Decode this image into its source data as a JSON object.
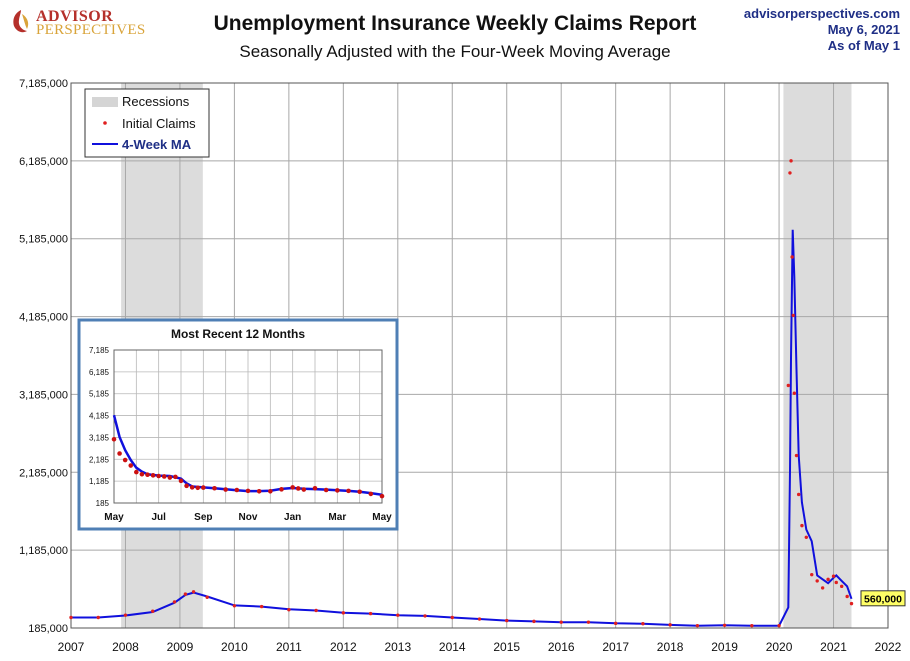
{
  "header": {
    "logo_line1": "ADVISOR",
    "logo_line2": "PERSPECTIVES",
    "title": "Unemployment Insurance Weekly Claims Report",
    "subtitle": "Seasonally Adjusted with the Four-Week Moving Average",
    "source_site": "advisorperspectives.com",
    "source_date": "May 6, 2021",
    "source_asof": "As of May 1"
  },
  "chart_data": [
    {
      "type": "line",
      "title": "",
      "xlabel": "",
      "ylabel": "",
      "xlim": [
        2007,
        2022
      ],
      "ylim": [
        185000,
        7185000
      ],
      "y_ticks": [
        185000,
        1185000,
        2185000,
        3185000,
        4185000,
        5185000,
        6185000,
        7185000
      ],
      "y_tick_labels": [
        "185,000",
        "1,185,000",
        "2,185,000",
        "3,185,000",
        "4,185,000",
        "5,185,000",
        "6,185,000",
        "7,185,000"
      ],
      "x_ticks": [
        2007,
        2008,
        2009,
        2010,
        2011,
        2012,
        2013,
        2014,
        2015,
        2016,
        2017,
        2018,
        2019,
        2020,
        2021,
        2022
      ],
      "x_tick_labels": [
        "2007",
        "2008",
        "2009",
        "2010",
        "2011",
        "2012",
        "2013",
        "2014",
        "2015",
        "2016",
        "2017",
        "2018",
        "2019",
        "2020",
        "2021",
        "2022"
      ],
      "grid": true,
      "legend_position": "top-left",
      "recessions": [
        [
          2007.92,
          2009.42
        ],
        [
          2020.08,
          2021.33
        ]
      ],
      "series": [
        {
          "name": "Initial Claims",
          "color": "#e02020",
          "marker": "dot",
          "x": [
            2007.0,
            2007.5,
            2008.0,
            2008.5,
            2008.9,
            2009.1,
            2009.25,
            2009.5,
            2010.0,
            2010.5,
            2011.0,
            2011.5,
            2012.0,
            2012.5,
            2013.0,
            2013.5,
            2014.0,
            2014.5,
            2015.0,
            2015.5,
            2016.0,
            2016.5,
            2017.0,
            2017.5,
            2018.0,
            2018.5,
            2019.0,
            2019.5,
            2020.0,
            2020.17,
            2020.2,
            2020.22,
            2020.24,
            2020.26,
            2020.28,
            2020.32,
            2020.36,
            2020.42,
            2020.5,
            2020.6,
            2020.7,
            2020.8,
            2020.9,
            2021.0,
            2021.05,
            2021.15,
            2021.25,
            2021.33
          ],
          "values": [
            320000,
            320000,
            350000,
            400000,
            520000,
            620000,
            650000,
            580000,
            470000,
            460000,
            420000,
            410000,
            380000,
            370000,
            350000,
            340000,
            320000,
            300000,
            280000,
            270000,
            260000,
            260000,
            245000,
            240000,
            225000,
            215000,
            220000,
            215000,
            215000,
            3300000,
            6030000,
            6185000,
            4950000,
            4200000,
            3200000,
            2400000,
            1900000,
            1500000,
            1350000,
            870000,
            790000,
            700000,
            810000,
            850000,
            770000,
            720000,
            590000,
            498000
          ]
        },
        {
          "name": "4-Week MA",
          "color": "#1010dd",
          "marker": "line",
          "x": [
            2007.0,
            2007.5,
            2008.0,
            2008.5,
            2008.9,
            2009.1,
            2009.25,
            2009.5,
            2010.0,
            2010.5,
            2011.0,
            2011.5,
            2012.0,
            2012.5,
            2013.0,
            2013.5,
            2014.0,
            2014.5,
            2015.0,
            2015.5,
            2016.0,
            2016.5,
            2017.0,
            2017.5,
            2018.0,
            2018.5,
            2019.0,
            2019.5,
            2020.0,
            2020.17,
            2020.2,
            2020.22,
            2020.25,
            2020.28,
            2020.32,
            2020.36,
            2020.42,
            2020.5,
            2020.6,
            2020.7,
            2020.8,
            2020.9,
            2021.0,
            2021.05,
            2021.15,
            2021.25,
            2021.33
          ],
          "values": [
            320000,
            320000,
            345000,
            390000,
            510000,
            610000,
            640000,
            590000,
            475000,
            460000,
            425000,
            410000,
            380000,
            370000,
            350000,
            340000,
            320000,
            300000,
            280000,
            270000,
            260000,
            260000,
            245000,
            240000,
            225000,
            215000,
            220000,
            215000,
            215000,
            450000,
            2200000,
            3650000,
            5300000,
            4700000,
            3500000,
            2400000,
            1800000,
            1450000,
            1300000,
            860000,
            810000,
            760000,
            830000,
            860000,
            790000,
            720000,
            560000
          ]
        }
      ],
      "legend_entries": [
        "Recessions",
        "Initial Claims",
        "4-Week MA"
      ],
      "last_value_label": "560,000"
    },
    {
      "type": "line",
      "title": "Most Recent 12 Months",
      "ylim": [
        185,
        7185
      ],
      "y_ticks": [
        185,
        1185,
        2185,
        3185,
        4185,
        5185,
        6185,
        7185
      ],
      "y_tick_labels": [
        "185",
        "1,185",
        "2,185",
        "3,185",
        "4,185",
        "5,185",
        "6,185",
        "7,185"
      ],
      "x_ticks": [
        0,
        2,
        4,
        6,
        8,
        10,
        12
      ],
      "x_tick_labels": [
        "May",
        "Jul",
        "Sep",
        "Nov",
        "Jan",
        "Mar",
        "May"
      ],
      "grid": true,
      "series": [
        {
          "name": "Initial Claims",
          "color": "#cc1111",
          "marker": "dot",
          "x": [
            0.0,
            0.25,
            0.5,
            0.75,
            1.0,
            1.25,
            1.5,
            1.75,
            2.0,
            2.25,
            2.5,
            2.75,
            3.0,
            3.25,
            3.5,
            3.75,
            4.0,
            4.5,
            5.0,
            5.5,
            6.0,
            6.5,
            7.0,
            7.5,
            8.0,
            8.25,
            8.5,
            9.0,
            9.5,
            10.0,
            10.5,
            11.0,
            11.5,
            12.0
          ],
          "values": [
            3100,
            2450,
            2150,
            1900,
            1600,
            1500,
            1480,
            1450,
            1420,
            1400,
            1350,
            1380,
            1200,
            970,
            900,
            880,
            890,
            860,
            800,
            780,
            740,
            720,
            720,
            810,
            900,
            850,
            800,
            860,
            780,
            760,
            740,
            700,
            600,
            500
          ]
        },
        {
          "name": "4-Week MA",
          "color": "#1010dd",
          "marker": "line",
          "x": [
            0.0,
            0.25,
            0.5,
            0.75,
            1.0,
            1.25,
            1.5,
            2.0,
            2.5,
            3.0,
            3.25,
            3.5,
            4.0,
            4.5,
            5.0,
            5.5,
            6.0,
            6.5,
            7.0,
            7.5,
            8.0,
            8.5,
            9.0,
            9.5,
            10.0,
            10.5,
            11.0,
            11.5,
            12.0
          ],
          "values": [
            4200,
            3200,
            2600,
            2150,
            1800,
            1620,
            1500,
            1440,
            1420,
            1300,
            1080,
            940,
            900,
            860,
            810,
            770,
            730,
            730,
            750,
            830,
            870,
            840,
            820,
            800,
            770,
            740,
            700,
            640,
            560
          ]
        }
      ]
    }
  ]
}
